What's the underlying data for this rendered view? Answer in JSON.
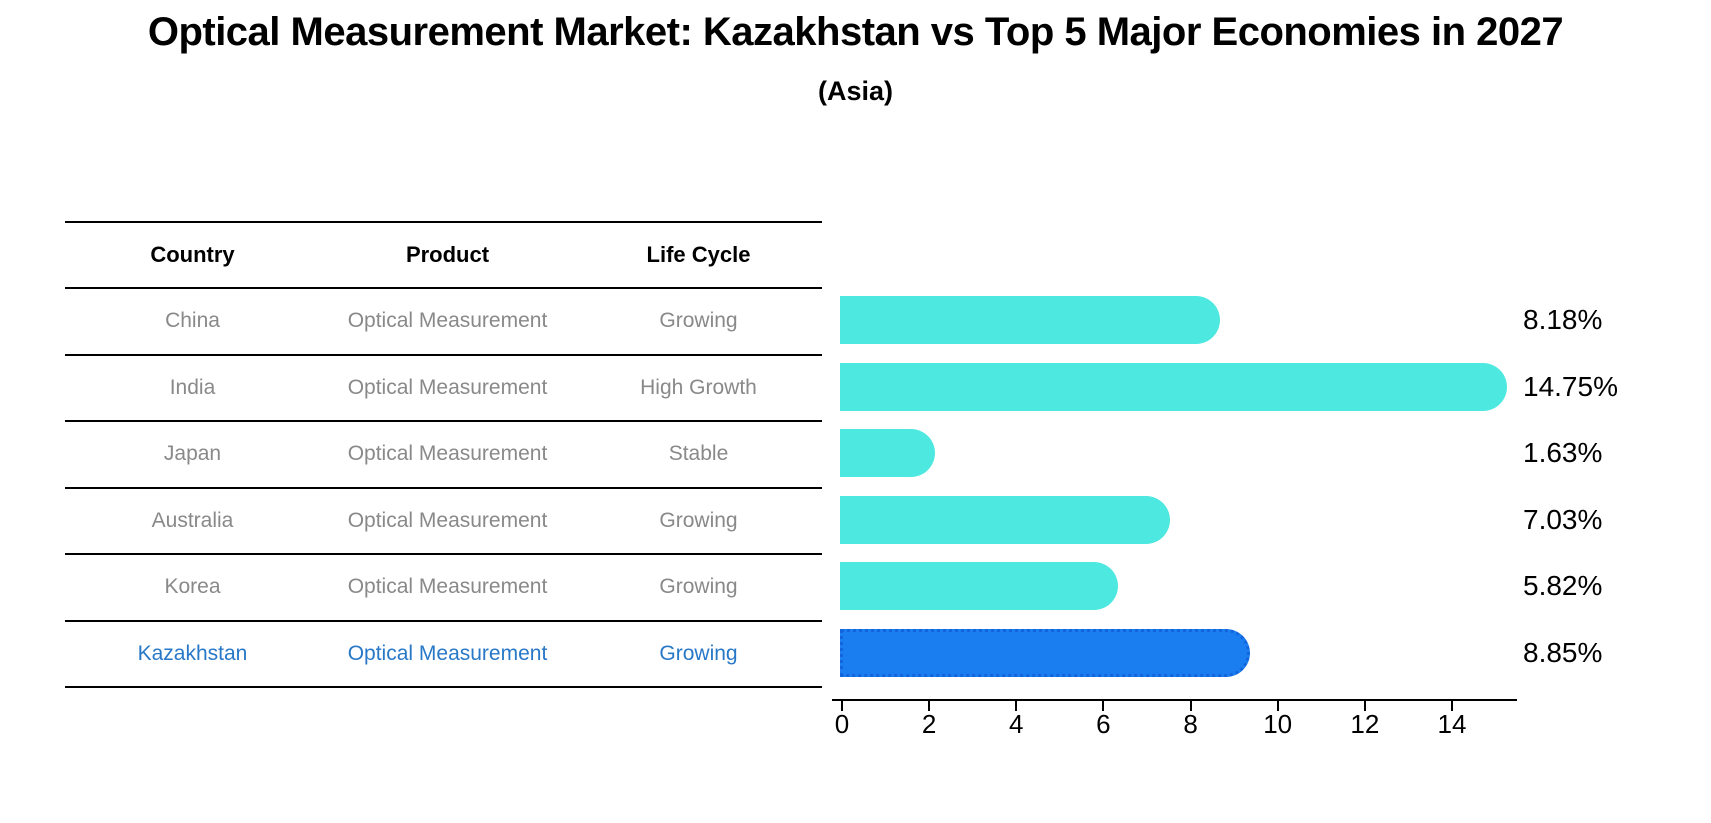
{
  "title": "Optical Measurement Market: Kazakhstan vs Top 5 Major Economies in 2027",
  "subtitle": "(Asia)",
  "table": {
    "headers": [
      "Country",
      "Product",
      "Life Cycle"
    ],
    "rows": [
      {
        "country": "China",
        "product": "Optical Measurement",
        "life_cycle": "Growing",
        "highlight": false
      },
      {
        "country": "India",
        "product": "Optical Measurement",
        "life_cycle": "High Growth",
        "highlight": false
      },
      {
        "country": "Japan",
        "product": "Optical Measurement",
        "life_cycle": "Stable",
        "highlight": false
      },
      {
        "country": "Australia",
        "product": "Optical Measurement",
        "life_cycle": "Growing",
        "highlight": false
      },
      {
        "country": "Korea",
        "product": "Optical Measurement",
        "life_cycle": "Growing",
        "highlight": false
      },
      {
        "country": "Kazakhstan",
        "product": "Optical Measurement",
        "life_cycle": "Growing",
        "highlight": true
      }
    ]
  },
  "chart_data": {
    "type": "bar",
    "orientation": "horizontal",
    "title": "Optical Measurement Market: Kazakhstan vs Top 5 Major Economies in 2027 (Asia)",
    "categories": [
      "China",
      "India",
      "Japan",
      "Australia",
      "Korea",
      "Kazakhstan"
    ],
    "values": [
      8.18,
      14.75,
      1.63,
      7.03,
      5.82,
      8.85
    ],
    "value_labels": [
      "8.18%",
      "14.75%",
      "1.63%",
      "7.03%",
      "5.82%",
      "8.85%"
    ],
    "highlight_index": 5,
    "x_ticks": [
      0,
      2,
      4,
      6,
      8,
      10,
      12,
      14
    ],
    "xlim": [
      0,
      15.5
    ],
    "grid": false,
    "legend": false,
    "colors": {
      "bar": "#4DE8E0",
      "highlight_bar": "#1A7DF0",
      "highlight_bar_border": "#1365DD",
      "highlight_text": "#2878C8",
      "row_text": "#898989",
      "axis": "#000000"
    }
  }
}
